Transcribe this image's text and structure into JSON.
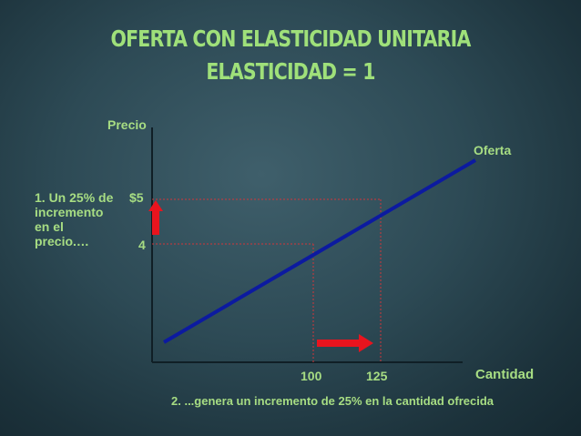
{
  "title": {
    "line1": "OFERTA CON ELASTICIDAD UNITARIA",
    "line2": "ELASTICIDAD = 1"
  },
  "axes": {
    "y_label": "Precio",
    "x_label": "Cantidad"
  },
  "curve": {
    "label": "Oferta",
    "color": "#0c1aa0"
  },
  "ticks": {
    "price_high": "$5",
    "price_low": "4",
    "qty_low": "100",
    "qty_high": "125"
  },
  "annotations": {
    "price_change": [
      "1. Un 25% de",
      "incremento",
      "en el",
      "precio.…"
    ],
    "qty_change": "2. ...genera un incremento de 25% en la cantidad ofrecida"
  },
  "colors": {
    "text": "#a7dd83",
    "title": "#9fe07a",
    "arrow": "#e8141e",
    "guide": "#d0363a"
  }
}
